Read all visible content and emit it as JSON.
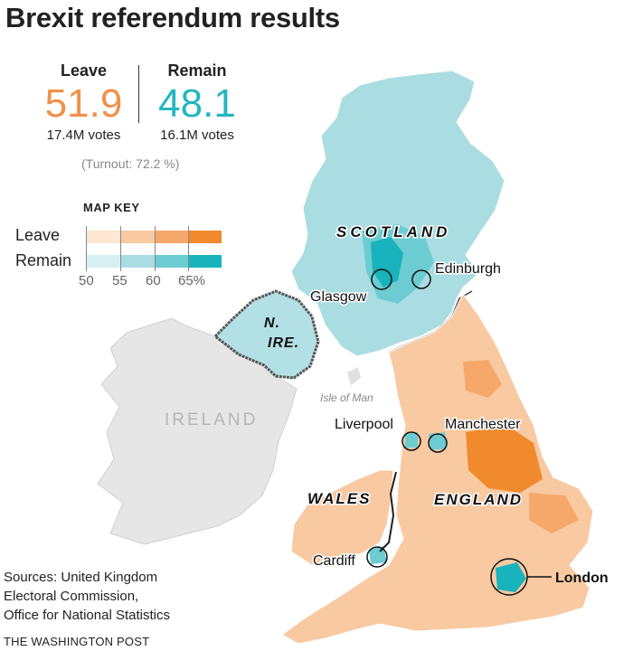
{
  "title": "Brexit referendum results",
  "leave": {
    "label": "Leave",
    "percent": "51.9",
    "votes": "17.4M votes",
    "color": "#f0914a"
  },
  "remain": {
    "label": "Remain",
    "percent": "48.1",
    "votes": "16.1M votes",
    "color": "#23b6c0"
  },
  "turnout": "(Turnout: 72.2 %)",
  "map_key": {
    "title": "MAP KEY",
    "leave_label": "Leave",
    "remain_label": "Remain",
    "ticks": [
      "50",
      "55",
      "60",
      "65%"
    ],
    "leave_colors": [
      "#fde6d3",
      "#f9c9a1",
      "#f6a86b",
      "#f08a2c"
    ],
    "remain_colors": [
      "#d9f0f2",
      "#a9dde2",
      "#6dcbd2",
      "#18b3bd"
    ]
  },
  "regions": {
    "scotland": "SCOTLAND",
    "wales": "WALES",
    "england": "ENGLAND",
    "nire": [
      "N.",
      "IRE."
    ],
    "ireland": "IRELAND",
    "isle_of_man": "Isle of Man"
  },
  "cities": {
    "glasgow": "Glasgow",
    "edinburgh": "Edinburgh",
    "liverpool": "Liverpool",
    "manchester": "Manchester",
    "cardiff": "Cardiff",
    "london": "London"
  },
  "sources": [
    "Sources: United Kingdom",
    "Electoral Commission,",
    "Office for National Statistics"
  ],
  "credit": "THE WASHINGTON POST"
}
